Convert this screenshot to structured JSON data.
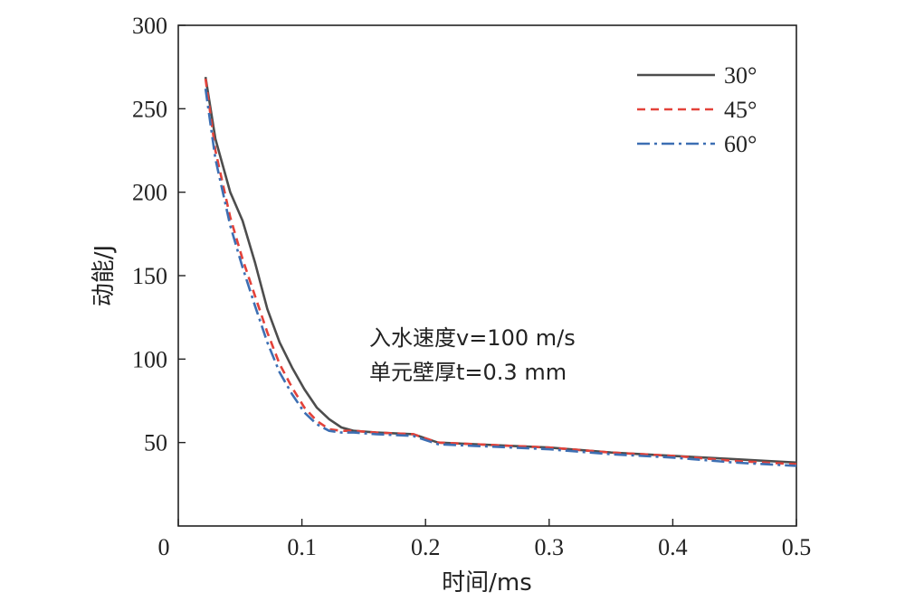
{
  "chart_data": {
    "type": "line",
    "xlabel": "时间/ms",
    "ylabel": "动能/J",
    "xlim": [
      0,
      0.5
    ],
    "ylim": [
      0,
      300
    ],
    "xticks": [
      0,
      0.1,
      0.2,
      0.3,
      0.4,
      0.5
    ],
    "yticks": [
      50,
      100,
      150,
      200,
      250,
      300
    ],
    "xtick_labels": [
      "0",
      "0.1",
      "0.2",
      "0.3",
      "0.4",
      "0.5"
    ],
    "ytick_labels": [
      "50",
      "100",
      "150",
      "200",
      "250",
      "300"
    ],
    "grid": false,
    "legend_position": "top-right",
    "annotations": [
      "入水速度v=100 m/s",
      "单元壁厚t=0.3 mm"
    ],
    "series": [
      {
        "name": "30°",
        "color": "#4d4d4d",
        "style": "solid",
        "x": [
          0.022,
          0.03,
          0.042,
          0.052,
          0.062,
          0.072,
          0.082,
          0.092,
          0.102,
          0.112,
          0.122,
          0.132,
          0.142,
          0.16,
          0.19,
          0.21,
          0.24,
          0.27,
          0.3,
          0.35,
          0.4,
          0.45,
          0.5
        ],
        "y": [
          269,
          232,
          200,
          183,
          158,
          130,
          110,
          95,
          82,
          71,
          64,
          59,
          57,
          56,
          55,
          50,
          49,
          48,
          47,
          44,
          42,
          40,
          38
        ]
      },
      {
        "name": "45°",
        "color": "#e3423a",
        "style": "dashed",
        "x": [
          0.022,
          0.03,
          0.042,
          0.052,
          0.062,
          0.072,
          0.082,
          0.092,
          0.102,
          0.112,
          0.122,
          0.132,
          0.142,
          0.16,
          0.19,
          0.21,
          0.24,
          0.27,
          0.3,
          0.35,
          0.4,
          0.45,
          0.5
        ],
        "y": [
          268,
          225,
          185,
          160,
          138,
          116,
          97,
          83,
          71,
          63,
          58,
          57,
          57,
          56,
          55,
          50,
          49,
          48,
          47,
          44,
          42,
          39,
          37
        ]
      },
      {
        "name": "60°",
        "color": "#3d6fb3",
        "style": "dashdot",
        "x": [
          0.022,
          0.03,
          0.042,
          0.052,
          0.062,
          0.072,
          0.082,
          0.092,
          0.102,
          0.112,
          0.122,
          0.132,
          0.142,
          0.16,
          0.19,
          0.21,
          0.24,
          0.27,
          0.3,
          0.35,
          0.4,
          0.45,
          0.5
        ],
        "y": [
          262,
          220,
          180,
          155,
          132,
          110,
          92,
          79,
          68,
          61,
          57,
          56,
          56,
          55,
          54,
          49,
          48,
          47,
          46,
          43,
          41,
          38,
          36
        ]
      }
    ]
  }
}
